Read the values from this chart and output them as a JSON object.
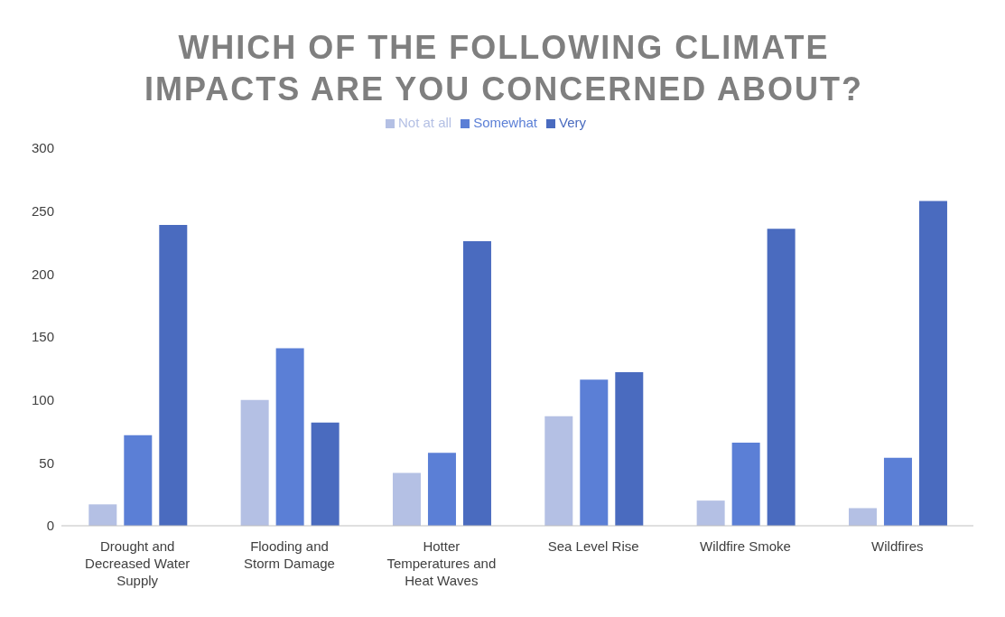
{
  "chart_data": {
    "type": "bar",
    "title": "WHICH OF THE FOLLOWING CLIMATE IMPACTS ARE YOU CONCERNED ABOUT?",
    "categories": [
      "Drought and Decreased Water Supply",
      "Flooding and Storm Damage",
      "Hotter Temperatures and Heat Waves",
      "Sea Level Rise",
      "Wildfire Smoke",
      "Wildfires"
    ],
    "series": [
      {
        "name": "Not at all",
        "color": "#b4c0e4",
        "values": [
          17,
          100,
          42,
          87,
          20,
          14
        ]
      },
      {
        "name": "Somewhat",
        "color": "#5b7fd6",
        "values": [
          72,
          141,
          58,
          116,
          66,
          54
        ]
      },
      {
        "name": "Very",
        "color": "#4a6bbf",
        "values": [
          239,
          82,
          226,
          122,
          236,
          258
        ]
      }
    ],
    "ylim": [
      0,
      300
    ],
    "yticks": [
      0,
      50,
      100,
      150,
      200,
      250,
      300
    ],
    "grid": false,
    "legend": "top"
  }
}
